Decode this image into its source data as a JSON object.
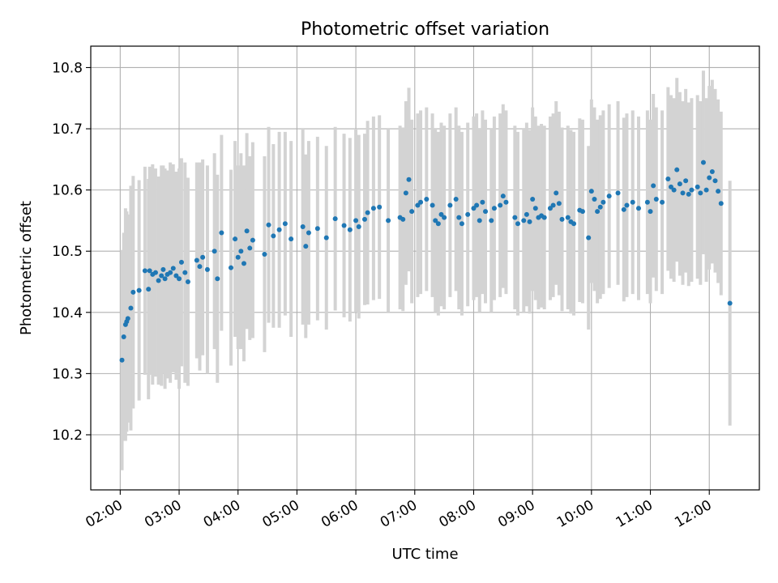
{
  "chart_data": {
    "type": "scatter",
    "title": "Photometric offset variation",
    "xlabel": "UTC time",
    "ylabel": "Photometric offset",
    "x_ticks": [
      "02:00",
      "03:00",
      "04:00",
      "05:00",
      "06:00",
      "07:00",
      "08:00",
      "09:00",
      "10:00",
      "11:00",
      "12:00"
    ],
    "y_ticks": [
      "10.2",
      "10.3",
      "10.4",
      "10.5",
      "10.6",
      "10.7",
      "10.8"
    ],
    "x_unit": "hours UTC",
    "xlim": [
      1.5,
      12.85
    ],
    "ylim": [
      10.11,
      10.835
    ],
    "grid": true,
    "colors": {
      "points": "#1f77b4",
      "error_bars": "#d3d3d3",
      "grid": "#b0b0b0"
    },
    "points": [
      [
        2.03,
        10.322,
        0.18
      ],
      [
        2.06,
        10.36,
        0.17
      ],
      [
        2.09,
        10.38,
        0.19
      ],
      [
        2.11,
        10.385,
        0.18
      ],
      [
        2.13,
        10.39,
        0.17
      ],
      [
        2.18,
        10.407,
        0.2
      ],
      [
        2.22,
        10.433,
        0.19
      ],
      [
        2.32,
        10.436,
        0.18
      ],
      [
        2.42,
        10.468,
        0.17
      ],
      [
        2.48,
        10.438,
        0.18
      ],
      [
        2.5,
        10.468,
        0.17
      ],
      [
        2.55,
        10.462,
        0.18
      ],
      [
        2.6,
        10.465,
        0.17
      ],
      [
        2.65,
        10.452,
        0.17
      ],
      [
        2.7,
        10.46,
        0.18
      ],
      [
        2.73,
        10.47,
        0.17
      ],
      [
        2.76,
        10.455,
        0.18
      ],
      [
        2.8,
        10.462,
        0.17
      ],
      [
        2.85,
        10.465,
        0.18
      ],
      [
        2.9,
        10.472,
        0.17
      ],
      [
        2.95,
        10.46,
        0.17
      ],
      [
        3.0,
        10.455,
        0.18
      ],
      [
        3.04,
        10.482,
        0.17
      ],
      [
        3.1,
        10.465,
        0.18
      ],
      [
        3.15,
        10.45,
        0.17
      ],
      [
        3.3,
        10.485,
        0.16
      ],
      [
        3.35,
        10.475,
        0.17
      ],
      [
        3.4,
        10.49,
        0.16
      ],
      [
        3.48,
        10.47,
        0.17
      ],
      [
        3.6,
        10.5,
        0.16
      ],
      [
        3.65,
        10.455,
        0.17
      ],
      [
        3.72,
        10.53,
        0.16
      ],
      [
        3.88,
        10.473,
        0.16
      ],
      [
        3.95,
        10.52,
        0.16
      ],
      [
        4.0,
        10.49,
        0.15
      ],
      [
        4.05,
        10.5,
        0.16
      ],
      [
        4.1,
        10.48,
        0.16
      ],
      [
        4.15,
        10.533,
        0.16
      ],
      [
        4.2,
        10.505,
        0.15
      ],
      [
        4.25,
        10.518,
        0.16
      ],
      [
        4.45,
        10.495,
        0.16
      ],
      [
        4.52,
        10.543,
        0.16
      ],
      [
        4.6,
        10.525,
        0.15
      ],
      [
        4.7,
        10.535,
        0.16
      ],
      [
        4.8,
        10.545,
        0.15
      ],
      [
        4.9,
        10.52,
        0.16
      ],
      [
        5.1,
        10.54,
        0.16
      ],
      [
        5.15,
        10.508,
        0.15
      ],
      [
        5.2,
        10.53,
        0.15
      ],
      [
        5.35,
        10.537,
        0.15
      ],
      [
        5.5,
        10.522,
        0.15
      ],
      [
        5.65,
        10.553,
        0.15
      ],
      [
        5.8,
        10.542,
        0.15
      ],
      [
        5.9,
        10.535,
        0.15
      ],
      [
        6.0,
        10.55,
        0.15
      ],
      [
        6.05,
        10.54,
        0.15
      ],
      [
        6.15,
        10.552,
        0.14
      ],
      [
        6.2,
        10.563,
        0.15
      ],
      [
        6.3,
        10.57,
        0.15
      ],
      [
        6.4,
        10.572,
        0.15
      ],
      [
        6.55,
        10.55,
        0.15
      ],
      [
        6.75,
        10.555,
        0.15
      ],
      [
        6.8,
        10.552,
        0.15
      ],
      [
        6.85,
        10.595,
        0.15
      ],
      [
        6.9,
        10.617,
        0.15
      ],
      [
        6.95,
        10.565,
        0.15
      ],
      [
        7.05,
        10.575,
        0.15
      ],
      [
        7.1,
        10.58,
        0.15
      ],
      [
        7.2,
        10.585,
        0.15
      ],
      [
        7.3,
        10.575,
        0.15
      ],
      [
        7.35,
        10.55,
        0.15
      ],
      [
        7.4,
        10.545,
        0.15
      ],
      [
        7.45,
        10.56,
        0.15
      ],
      [
        7.5,
        10.555,
        0.15
      ],
      [
        7.6,
        10.575,
        0.15
      ],
      [
        7.7,
        10.585,
        0.15
      ],
      [
        7.75,
        10.555,
        0.15
      ],
      [
        7.8,
        10.545,
        0.15
      ],
      [
        7.9,
        10.56,
        0.15
      ],
      [
        8.0,
        10.57,
        0.15
      ],
      [
        8.05,
        10.575,
        0.15
      ],
      [
        8.1,
        10.55,
        0.15
      ],
      [
        8.15,
        10.58,
        0.15
      ],
      [
        8.2,
        10.565,
        0.15
      ],
      [
        8.3,
        10.55,
        0.15
      ],
      [
        8.35,
        10.57,
        0.15
      ],
      [
        8.45,
        10.575,
        0.15
      ],
      [
        8.5,
        10.59,
        0.15
      ],
      [
        8.55,
        10.58,
        0.15
      ],
      [
        8.7,
        10.555,
        0.15
      ],
      [
        8.75,
        10.545,
        0.15
      ],
      [
        8.85,
        10.55,
        0.15
      ],
      [
        8.9,
        10.56,
        0.15
      ],
      [
        8.95,
        10.548,
        0.15
      ],
      [
        9.0,
        10.585,
        0.15
      ],
      [
        9.05,
        10.57,
        0.15
      ],
      [
        9.1,
        10.555,
        0.15
      ],
      [
        9.15,
        10.558,
        0.15
      ],
      [
        9.2,
        10.555,
        0.15
      ],
      [
        9.3,
        10.57,
        0.15
      ],
      [
        9.35,
        10.575,
        0.15
      ],
      [
        9.4,
        10.595,
        0.15
      ],
      [
        9.45,
        10.578,
        0.15
      ],
      [
        9.5,
        10.552,
        0.15
      ],
      [
        9.6,
        10.555,
        0.15
      ],
      [
        9.65,
        10.548,
        0.15
      ],
      [
        9.7,
        10.545,
        0.15
      ],
      [
        9.8,
        10.567,
        0.15
      ],
      [
        9.85,
        10.565,
        0.15
      ],
      [
        9.95,
        10.522,
        0.15
      ],
      [
        10.0,
        10.598,
        0.15
      ],
      [
        10.05,
        10.585,
        0.15
      ],
      [
        10.1,
        10.565,
        0.15
      ],
      [
        10.15,
        10.572,
        0.15
      ],
      [
        10.2,
        10.58,
        0.15
      ],
      [
        10.3,
        10.59,
        0.15
      ],
      [
        10.45,
        10.595,
        0.15
      ],
      [
        10.55,
        10.568,
        0.15
      ],
      [
        10.6,
        10.575,
        0.15
      ],
      [
        10.7,
        10.58,
        0.15
      ],
      [
        10.8,
        10.57,
        0.15
      ],
      [
        10.95,
        10.58,
        0.15
      ],
      [
        11.0,
        10.565,
        0.15
      ],
      [
        11.05,
        10.607,
        0.15
      ],
      [
        11.1,
        10.585,
        0.15
      ],
      [
        11.2,
        10.58,
        0.15
      ],
      [
        11.3,
        10.618,
        0.15
      ],
      [
        11.35,
        10.605,
        0.15
      ],
      [
        11.4,
        10.6,
        0.15
      ],
      [
        11.45,
        10.633,
        0.15
      ],
      [
        11.5,
        10.61,
        0.15
      ],
      [
        11.55,
        10.595,
        0.15
      ],
      [
        11.6,
        10.615,
        0.15
      ],
      [
        11.65,
        10.593,
        0.15
      ],
      [
        11.7,
        10.6,
        0.15
      ],
      [
        11.8,
        10.605,
        0.15
      ],
      [
        11.85,
        10.595,
        0.15
      ],
      [
        11.9,
        10.645,
        0.15
      ],
      [
        11.95,
        10.6,
        0.15
      ],
      [
        12.0,
        10.62,
        0.15
      ],
      [
        12.05,
        10.63,
        0.15
      ],
      [
        12.1,
        10.615,
        0.15
      ],
      [
        12.15,
        10.598,
        0.15
      ],
      [
        12.2,
        10.578,
        0.15
      ],
      [
        12.35,
        10.415,
        0.2
      ]
    ]
  }
}
